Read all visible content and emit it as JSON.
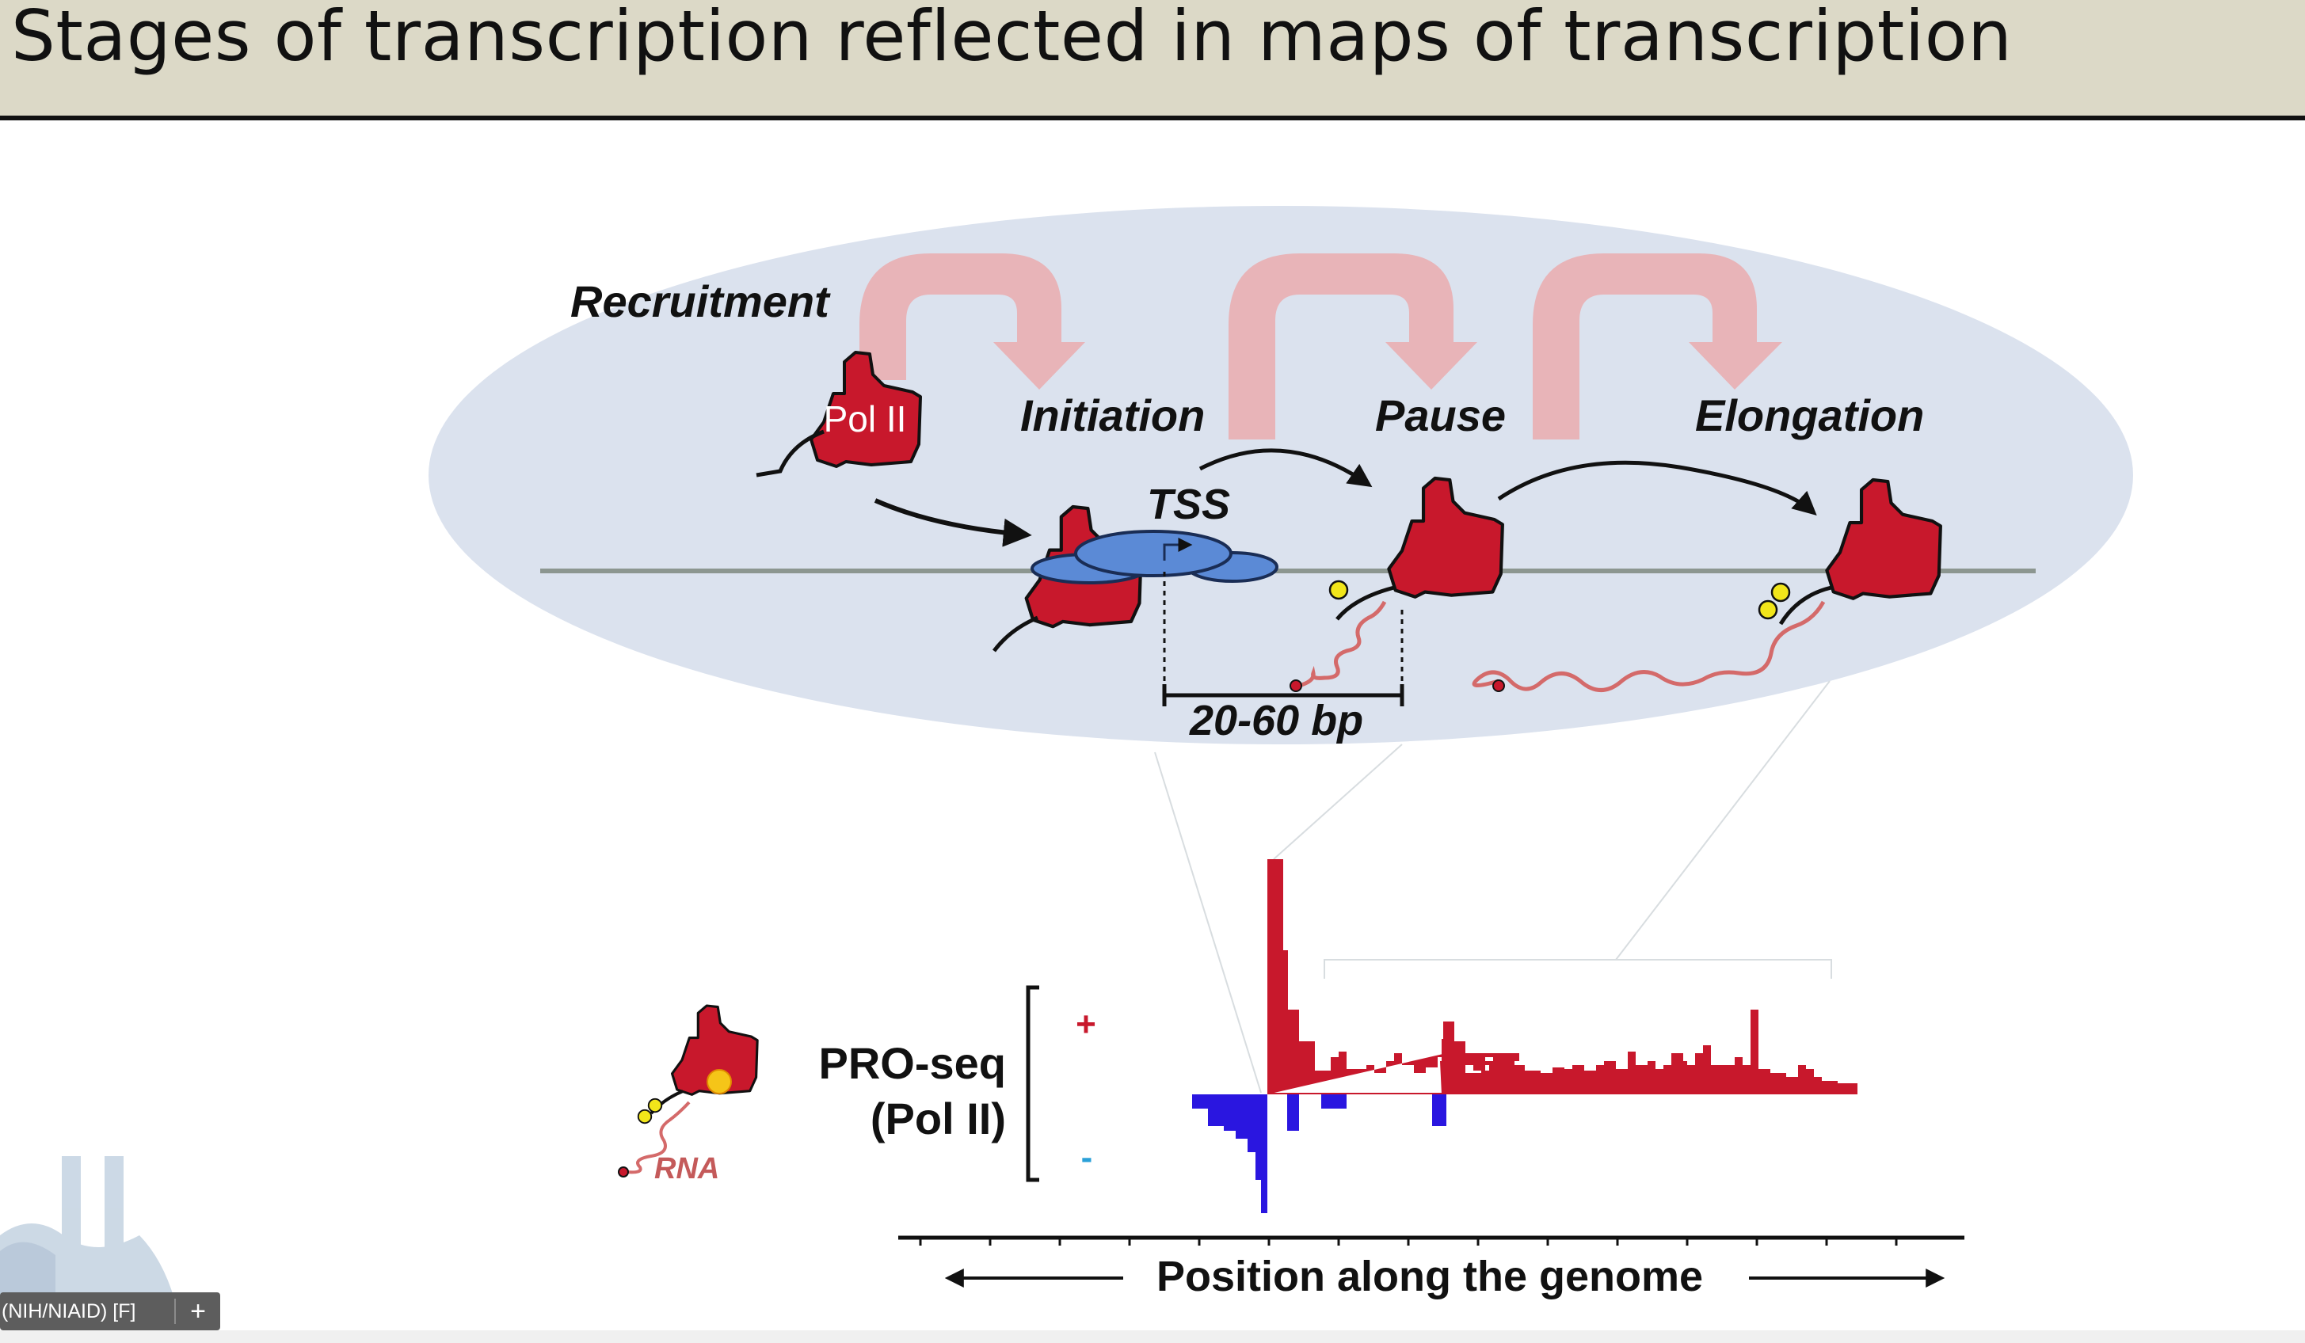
{
  "title": "Stages of transcription reflected in maps of transcription",
  "diagram": {
    "stages": {
      "recruitment": "Recruitment",
      "initiation": "Initiation",
      "pause": "Pause",
      "elongation": "Elongation"
    },
    "pol2_label": "Pol II",
    "tss_label": "TSS",
    "distance_label": "20-60 bp",
    "phospho_mark": "P"
  },
  "track": {
    "label_line1": "PRO-seq",
    "label_line2": "(Pol II)",
    "plus_sign": "+",
    "minus_sign": "-",
    "rna_label": "RNA",
    "axis_label": "Position along the genome"
  },
  "colors": {
    "pol2_red": "#c8182c",
    "plus_strand": "#c8182c",
    "minus_strand": "#2a16e0",
    "ellipse_bg": "#dbe2ee",
    "tss_blue": "#5b8ad6",
    "big_arrow": "#e8b4b8"
  },
  "taskbar": {
    "text": "(NIH/NIAID) [F]",
    "plus": "+"
  }
}
